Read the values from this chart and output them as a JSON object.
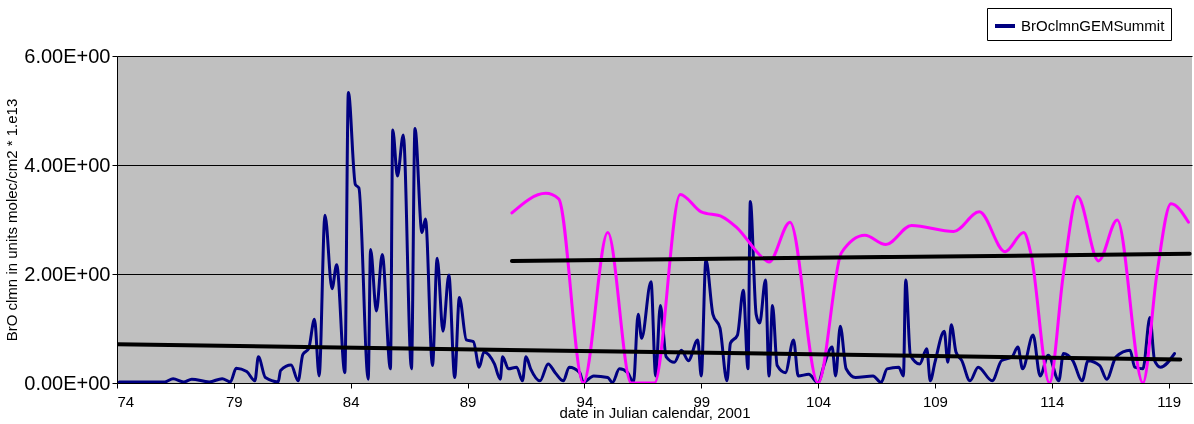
{
  "chart_data": {
    "type": "line",
    "xlabel": "date in Julian calendar, 2001",
    "ylabel": "BrO clmn in units molec/cm2 * 1.e13",
    "xlim": [
      74,
      120
    ],
    "xticks": [
      74,
      79,
      84,
      89,
      94,
      99,
      104,
      109,
      114,
      119
    ],
    "ylim": [
      0,
      6
    ],
    "yticks": [
      {
        "value": 0,
        "label": "0.00E+00"
      },
      {
        "value": 2,
        "label": "2.00E+00"
      },
      {
        "value": 4,
        "label": "4.00E+00"
      },
      {
        "value": 6,
        "label": "6.00E+00"
      }
    ],
    "grid": "y",
    "legend": "top right",
    "marker": "none",
    "line_style": "solid",
    "series": [
      {
        "name": "BrOclmnGEMSummit",
        "color": "#000080",
        "x": [
          74.1,
          76.05,
          76.4,
          76.85,
          77.2,
          77.95,
          78.5,
          78.85,
          79.1,
          79.55,
          79.9,
          80.05,
          80.35,
          80.9,
          81.0,
          81.45,
          81.75,
          81.95,
          82.2,
          82.45,
          82.65,
          82.9,
          83.2,
          83.4,
          83.75,
          83.9,
          84.2,
          84.35,
          84.75,
          84.85,
          85.1,
          85.35,
          85.7,
          85.8,
          86.0,
          86.25,
          86.6,
          86.75,
          87.05,
          87.2,
          87.5,
          87.7,
          87.95,
          88.2,
          88.45,
          88.65,
          88.95,
          89.25,
          89.5,
          89.7,
          90.15,
          90.4,
          90.5,
          90.75,
          91.1,
          91.35,
          91.5,
          91.7,
          92.1,
          92.45,
          92.75,
          93.1,
          93.35,
          93.8,
          93.95,
          94.4,
          95.0,
          95.2,
          95.5,
          95.85,
          96.1,
          96.3,
          96.45,
          96.85,
          97.05,
          97.25,
          97.5,
          97.85,
          98.15,
          98.45,
          98.85,
          99.0,
          99.2,
          99.5,
          99.8,
          100.1,
          100.25,
          100.55,
          100.8,
          101.0,
          101.1,
          101.35,
          101.5,
          101.75,
          101.9,
          102.05,
          102.25,
          102.6,
          102.95,
          103.15,
          103.6,
          104.0,
          104.25,
          104.6,
          104.75,
          104.95,
          105.2,
          105.6,
          106.35,
          106.7,
          106.95,
          107.45,
          107.65,
          107.75,
          107.95,
          108.35,
          108.65,
          108.8,
          109.0,
          109.4,
          109.55,
          109.7,
          109.9,
          110.15,
          110.5,
          110.85,
          111.45,
          111.85,
          112.3,
          112.55,
          112.75,
          113.2,
          113.5,
          113.85,
          114.3,
          114.5,
          114.9,
          115.3,
          115.55,
          116.05,
          116.35,
          116.75,
          117.35,
          117.55,
          117.9,
          118.2,
          118.4,
          118.65,
          119.25
        ],
        "values": [
          0.02,
          0.02,
          0.08,
          0.02,
          0.07,
          0.02,
          0.08,
          0.02,
          0.27,
          0.21,
          0.04,
          0.48,
          0.1,
          0.02,
          0.23,
          0.33,
          0.04,
          0.52,
          0.63,
          1.17,
          0.13,
          3.08,
          1.73,
          2.17,
          0.19,
          5.33,
          3.64,
          3.58,
          0.07,
          2.45,
          1.32,
          2.36,
          0.26,
          4.64,
          3.8,
          4.55,
          0.26,
          4.67,
          2.76,
          3.01,
          0.32,
          2.29,
          0.95,
          1.98,
          0.1,
          1.57,
          0.79,
          0.76,
          0.29,
          0.57,
          0.35,
          0.07,
          0.48,
          0.26,
          0.29,
          0.04,
          0.48,
          0.26,
          0.04,
          0.35,
          0.19,
          0.04,
          0.29,
          0.19,
          0.01,
          0.13,
          0.1,
          0.01,
          0.26,
          0.19,
          0.01,
          1.26,
          0.82,
          1.86,
          0.13,
          1.42,
          0.48,
          0.38,
          0.6,
          0.41,
          0.79,
          0.13,
          2.26,
          1.26,
          1.01,
          0.04,
          0.73,
          0.88,
          1.7,
          0.26,
          3.33,
          1.26,
          1.1,
          1.89,
          0.13,
          1.42,
          0.32,
          0.19,
          0.79,
          0.13,
          0.16,
          0,
          0.32,
          0.66,
          0.13,
          1.04,
          0.26,
          0.1,
          0.13,
          0.01,
          0.26,
          0.29,
          0.13,
          1.89,
          0.51,
          0.35,
          0.63,
          0.04,
          0.38,
          0.95,
          0.38,
          1.07,
          0.57,
          0.41,
          0.04,
          0.29,
          0.04,
          0.41,
          0.48,
          0.66,
          0.26,
          0.88,
          0.13,
          0.51,
          0.04,
          0.54,
          0.41,
          0.04,
          0.41,
          0.32,
          0.07,
          0.48,
          0.6,
          0.29,
          0.26,
          1.2,
          0.41,
          0.29,
          0.54
        ]
      },
      {
        "color": "#ff00ff",
        "x": [
          90.9,
          92.35,
          92.9,
          93.95,
          95.0,
          96.0,
          97.0,
          98.1,
          99.0,
          99.9,
          100.5,
          101.65,
          101.9,
          102.8,
          104.0,
          105.0,
          106.0,
          106.9,
          108.0,
          109.8,
          110.9,
          112.0,
          112.8,
          113.1,
          113.9,
          114.5,
          115.1,
          116.0,
          116.8,
          117.9,
          118.5,
          119.1,
          119.85
        ],
        "values": [
          3.12,
          3.48,
          3.38,
          0,
          2.76,
          0,
          0,
          3.46,
          3.14,
          3.05,
          2.86,
          2.29,
          2.22,
          2.95,
          0,
          2.39,
          2.71,
          2.54,
          2.89,
          2.78,
          3.14,
          2.41,
          2.76,
          2.39,
          0,
          2.01,
          3.42,
          2.24,
          2.99,
          0,
          2.01,
          3.29,
          2.95
        ]
      },
      {
        "color": "#000000",
        "x": [
          74,
          119.5
        ],
        "values": [
          0.71,
          0.43
        ]
      },
      {
        "color": "#000000",
        "x": [
          90.9,
          119.9
        ],
        "values": [
          2.24,
          2.37
        ]
      }
    ]
  }
}
